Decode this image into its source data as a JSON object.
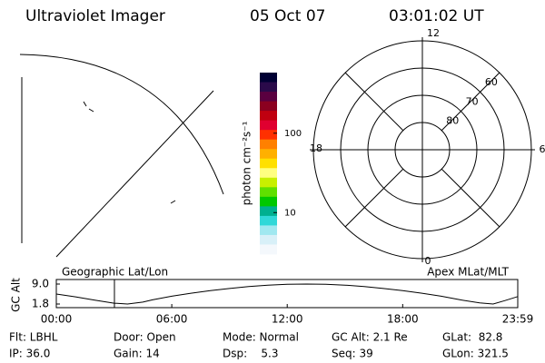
{
  "header": {
    "title": "Ultraviolet Imager",
    "date": "05 Oct 07",
    "time": "03:01:02 UT"
  },
  "colorbar": {
    "label": "photon cm⁻²s⁻¹",
    "scale": "log",
    "ylim": [
      3,
      580
    ],
    "yticks": [
      10,
      100
    ],
    "colors": [
      "#000033",
      "#2a0a4a",
      "#5a0040",
      "#8b0020",
      "#c00010",
      "#e00030",
      "#ff3000",
      "#ff8000",
      "#ffb000",
      "#ffe000",
      "#ffff80",
      "#c8f000",
      "#60e000",
      "#00c800",
      "#00b090",
      "#30d8d8",
      "#a0e8f0",
      "#d8f0f8",
      "#f4f8fc"
    ]
  },
  "polar": {
    "rlim": [
      90,
      50
    ],
    "lat_ticks": [
      80,
      70,
      60
    ],
    "mlt_labels": [
      "12",
      "6",
      "0",
      "18"
    ]
  },
  "panel_labels": {
    "left": "Geographic Lat/Lon",
    "right": "Apex MLat/MLT"
  },
  "orbit": {
    "ylabel": "GC Alt",
    "ylim": [
      1.8,
      9.0
    ],
    "yticks": [
      {
        "value": 9.0,
        "label": "9.0"
      },
      1.8
    ],
    "xlim": [
      0,
      23.98
    ],
    "xticks": [
      {
        "value": 0,
        "label": "00:00"
      },
      {
        "value": 6,
        "label": "06:00"
      },
      {
        "value": 12,
        "label": "12:00"
      },
      {
        "value": 18,
        "label": "18:00"
      },
      {
        "value": 23.98,
        "label": "23:59"
      }
    ],
    "x": [
      0,
      1,
      2,
      3,
      3.7,
      4.5,
      5,
      6,
      7,
      8,
      9,
      10,
      11,
      12,
      13,
      14,
      15,
      16,
      17,
      18,
      19,
      20,
      21,
      22,
      22.7,
      23.3,
      23.98
    ],
    "values": [
      5.4,
      4.4,
      3.2,
      2.1,
      1.8,
      2.5,
      3.3,
      4.6,
      5.7,
      6.6,
      7.4,
      8.1,
      8.6,
      8.9,
      9.0,
      8.9,
      8.6,
      8.1,
      7.4,
      6.6,
      5.7,
      4.6,
      3.3,
      2.2,
      1.8,
      3.0,
      4.5
    ],
    "marker_hour": 3.02,
    "color": "#000000",
    "marker_color": "#e00000"
  },
  "info": [
    [
      "Flt: LBHL",
      "Door: Open",
      "Mode: Normal",
      "GC Alt: 2.1 Re",
      "GLat:  82.8"
    ],
    [
      "IP: 36.0",
      "Gain: 14",
      "Dsp:    5.3",
      "Seq: 39",
      "GLon: 321.5"
    ]
  ]
}
